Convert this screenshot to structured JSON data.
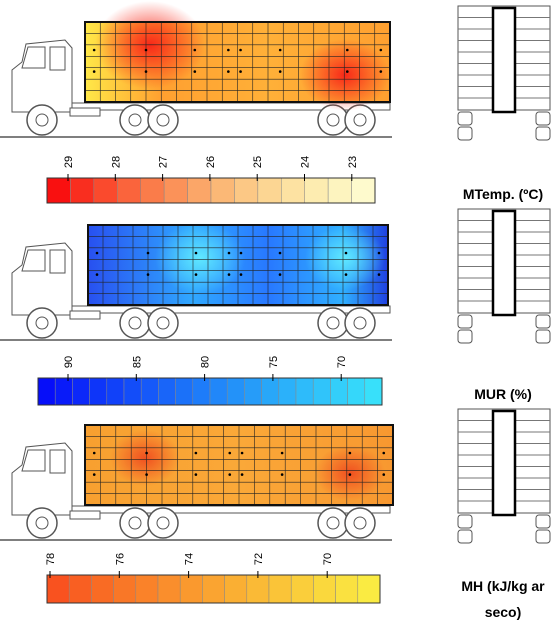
{
  "panels": [
    {
      "label": "MTemp. (ºC)",
      "scale_ticks": [
        "29",
        "28",
        "27",
        "26",
        "25",
        "24",
        "23"
      ]
    },
    {
      "label": "MUR (%)",
      "scale_ticks": [
        "90",
        "85",
        "80",
        "75",
        "70"
      ]
    },
    {
      "label": "MH (kJ/kg ar seco)",
      "scale_ticks": [
        "78",
        "76",
        "74",
        "72",
        "70"
      ]
    }
  ]
}
